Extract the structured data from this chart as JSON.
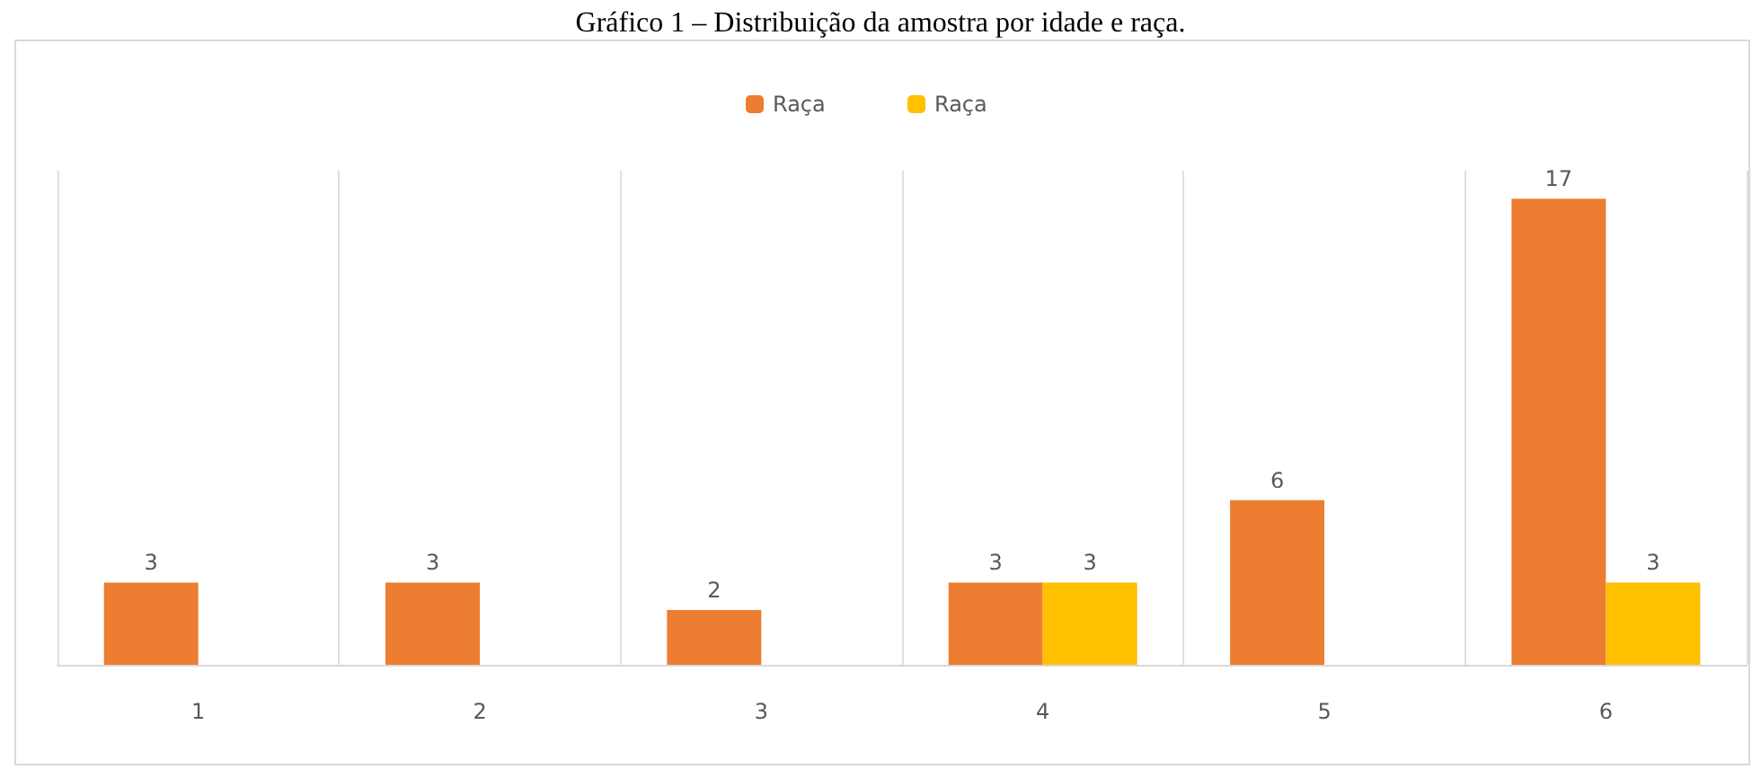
{
  "chart_data": {
    "type": "bar",
    "title": "Gráfico 1 – Distribuição da amostra por idade e raça.",
    "categories": [
      "1",
      "2",
      "3",
      "4",
      "5",
      "6"
    ],
    "series": [
      {
        "name": "Raça",
        "color": "#ed7d31",
        "values": [
          3,
          3,
          2,
          3,
          6,
          17
        ]
      },
      {
        "name": "Raça",
        "color": "#ffc000",
        "values": [
          null,
          null,
          null,
          3,
          null,
          3
        ]
      }
    ],
    "data_labels": true,
    "grid": "x",
    "legend": "top"
  }
}
